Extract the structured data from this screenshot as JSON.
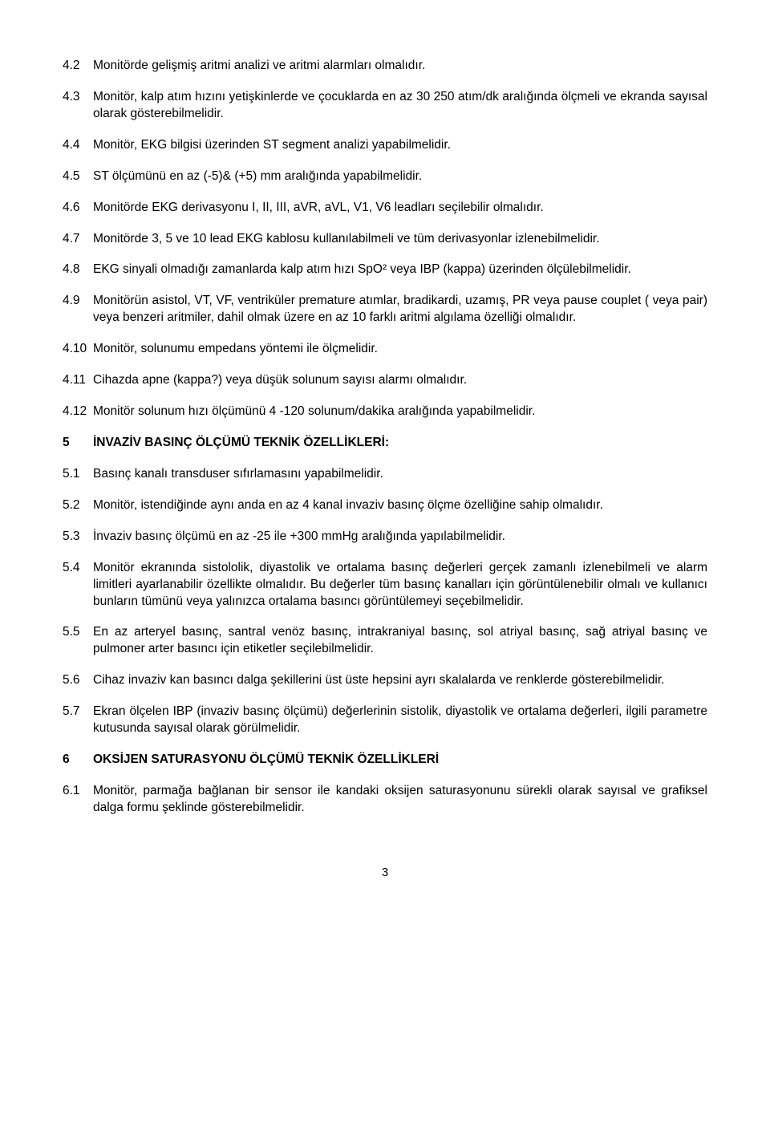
{
  "items": [
    {
      "num": "4.2",
      "text": "Monitörde gelişmiş aritmi analizi ve aritmi alarmları olmalıdır.",
      "bold": false
    },
    {
      "num": "4.3",
      "text": "Monitör, kalp atım hızını yetişkinlerde ve çocuklarda en az 30 250 atım/dk aralığında ölçmeli ve ekranda sayısal olarak gösterebilmelidir.",
      "bold": false
    },
    {
      "num": "4.4",
      "text": "Monitör, EKG bilgisi üzerinden ST segment analizi yapabilmelidir.",
      "bold": false
    },
    {
      "num": "4.5",
      "text": "ST ölçümünü en az (-5)& (+5) mm aralığında yapabilmelidir.",
      "bold": false
    },
    {
      "num": "4.6",
      "text": "Monitörde EKG derivasyonu I, II, III, aVR, aVL, V1, V6 leadları seçilebilir olmalıdır.",
      "bold": false
    },
    {
      "num": "4.7",
      "text": "Monitörde 3, 5 ve 10 lead EKG kablosu kullanılabilmeli ve tüm derivasyonlar izlenebilmelidir.",
      "bold": false
    },
    {
      "num": "4.8",
      "text": "EKG sinyali olmadığı zamanlarda kalp atım hızı SpO² veya IBP (kappa) üzerinden ölçülebilmelidir.",
      "bold": false
    },
    {
      "num": "4.9",
      "text": "Monitörün asistol, VT, VF, ventriküler premature atımlar, bradikardi, uzamış, PR veya pause couplet ( veya pair) veya benzeri aritmiler, dahil olmak üzere en az 10 farklı aritmi algılama özelliği olmalıdır.",
      "bold": false
    },
    {
      "num": "4.10",
      "text": "Monitör, solunumu empedans yöntemi ile ölçmelidir.",
      "bold": false
    },
    {
      "num": "4.11",
      "text": "Cihazda apne (kappa?) veya düşük solunum sayısı alarmı olmalıdır.",
      "bold": false
    },
    {
      "num": "4.12",
      "text": "Monitör solunum hızı ölçümünü 4 -120 solunum/dakika aralığında yapabilmelidir.",
      "bold": false
    },
    {
      "num": "5",
      "text": "İNVAZİV BASINÇ ÖLÇÜMÜ TEKNİK ÖZELLİKLERİ:",
      "bold": true
    },
    {
      "num": "5.1",
      "text": "Basınç kanalı transduser sıfırlamasını yapabilmelidir.",
      "bold": false
    },
    {
      "num": "5.2",
      "text": "Monitör, istendiğinde aynı anda en az 4 kanal invaziv basınç ölçme özelliğine sahip olmalıdır.",
      "bold": false
    },
    {
      "num": "5.3",
      "text": "İnvaziv basınç ölçümü en az -25 ile +300 mmHg aralığında yapılabilmelidir.",
      "bold": false
    },
    {
      "num": "5.4",
      "text": "Monitör ekranında sistololik, diyastolik ve ortalama basınç değerleri gerçek zamanlı izlenebilmeli ve alarm limitleri ayarlanabilir özellikte olmalıdır. Bu değerler tüm basınç kanalları için görüntülenebilir olmalı ve kullanıcı bunların tümünü veya yalınızca ortalama basıncı görüntülemeyi seçebilmelidir.",
      "bold": false
    },
    {
      "num": "5.5",
      "text": "En az arteryel basınç, santral venöz basınç, intrakraniyal basınç, sol atriyal basınç, sağ atriyal basınç ve pulmoner arter basıncı için etiketler seçilebilmelidir.",
      "bold": false
    },
    {
      "num": "5.6",
      "text": "Cihaz invaziv kan basıncı dalga şekillerini üst üste hepsini ayrı skalalarda ve renklerde gösterebilmelidir.",
      "bold": false
    },
    {
      "num": "5.7",
      "text": "Ekran ölçelen IBP (invaziv basınç ölçümü) değerlerinin sistolik, diyastolik ve ortalama değerleri, ilgili parametre kutusunda sayısal olarak görülmelidir.",
      "bold": false
    },
    {
      "num": "6",
      "text": "OKSİJEN SATURASYONU ÖLÇÜMÜ TEKNİK ÖZELLİKLERİ",
      "bold": true
    },
    {
      "num": "6.1",
      "text": "Monitör, parmağa bağlanan bir sensor ile kandaki oksijen saturasyonunu sürekli olarak sayısal ve grafiksel dalga formu şeklinde gösterebilmelidir.",
      "bold": false
    }
  ],
  "pageNumber": "3"
}
